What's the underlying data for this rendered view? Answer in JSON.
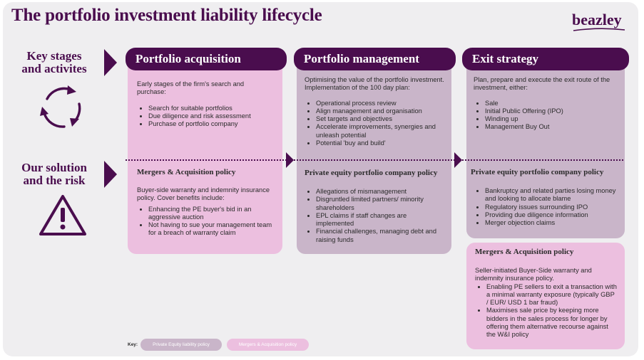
{
  "title": "The portfolio investment liability lifecycle",
  "logo": "beazley",
  "side_labels": {
    "stages": "Key stages and activites",
    "solution": "Our solution and the risk"
  },
  "columns": {
    "acquisition": {
      "header": "Portfolio acquisition",
      "intro": "Early stages of the firm's search and purchase:",
      "bullets": [
        "Search for suitable portfolios",
        "Due diligence and risk assessment",
        "Purchase of portfolio company"
      ],
      "policy_title": "Mergers & Acquisition policy",
      "policy_intro": "Buyer-side warranty and indemnity insurance policy. Cover benefits include:",
      "policy_bullets": [
        "Enhancing the PE buyer's bid in an aggressive auction",
        "Not having to sue your management team for a breach of warranty claim"
      ]
    },
    "management": {
      "header": "Portfolio management",
      "intro": "Optimising the value of the portfolio investment. Implementation of the 100 day plan:",
      "bullets": [
        "Operational process review",
        "Align management and organisation",
        "Set targets and objectives",
        "Accelerate improvements, synergies and unleash potential",
        "Potential 'buy and build'"
      ],
      "policy_title": "Private equity portfolio company policy",
      "policy_bullets": [
        "Allegations of mismanagement",
        "Disgruntled limited partners/ minority shareholders",
        "EPL claims if staff changes are implemented",
        "Financial challenges, managing debt and raising funds"
      ]
    },
    "exit": {
      "header": "Exit strategy",
      "intro": "Plan, prepare and execute the exit route of the investment, either:",
      "bullets": [
        "Sale",
        "Initial Public Offering (IPO)",
        "Winding up",
        "Management Buy Out"
      ],
      "policy_title": "Private equity portfolio company policy",
      "policy_bullets": [
        "Bankruptcy and related parties losing money and looking to allocate blame",
        "Regulatory issues surrounding IPO",
        "Providing due diligence information",
        "Merger objection claims"
      ],
      "ma_title": "Mergers & Acquisition policy",
      "ma_intro": "Seller-initiated Buyer-Side warranty and indemnity insurance policy.",
      "ma_bullets": [
        "Enabling PE sellers to exit a transaction with a minimal warranty exposure (typically GBP / EUR/ USD 1 bar fraud)",
        "Maximises sale price by keeping more bidders in the sales process for longer by offering them alternative recourse against the W&I policy"
      ]
    }
  },
  "key": {
    "label": "Key:",
    "items": [
      {
        "label": "Private Equity liability policy",
        "color": "#c9b5c9"
      },
      {
        "label": "Mergers & Acquisition policy",
        "color": "#ecbfdf"
      }
    ]
  },
  "colors": {
    "brand": "#4a0d4e",
    "pink": "#ecbfdf",
    "mauve": "#c9b5c9"
  },
  "icons": [
    "cycle-arrows-icon",
    "warning-triangle-icon"
  ]
}
